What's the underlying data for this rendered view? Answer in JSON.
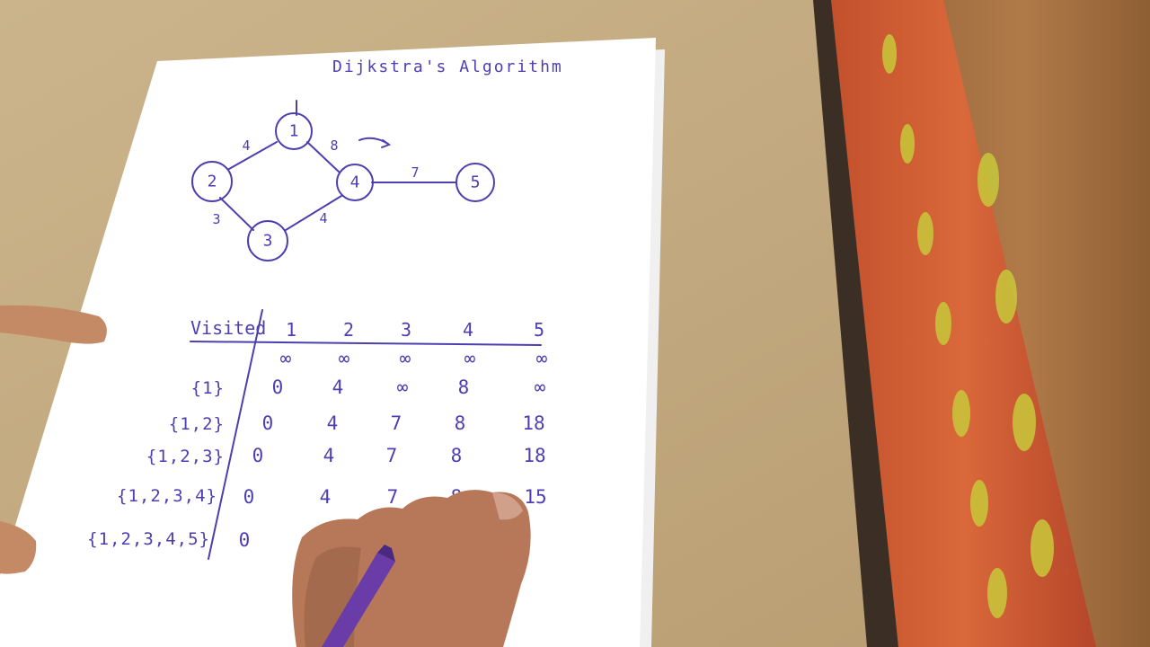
{
  "title": "Dijkstra's Algorithm",
  "graph": {
    "nodes": [
      {
        "id": "1",
        "label": "1"
      },
      {
        "id": "2",
        "label": "2"
      },
      {
        "id": "3",
        "label": "3"
      },
      {
        "id": "4",
        "label": "4"
      },
      {
        "id": "5",
        "label": "5"
      }
    ],
    "edges": [
      {
        "from": "1",
        "to": "2",
        "weight": "4"
      },
      {
        "from": "1",
        "to": "4",
        "weight": "8"
      },
      {
        "from": "2",
        "to": "3",
        "weight": "3"
      },
      {
        "from": "3",
        "to": "4",
        "weight": "4"
      },
      {
        "from": "4",
        "to": "5",
        "weight": "7"
      }
    ]
  },
  "table": {
    "visited_header": "Visited",
    "column_headers": [
      "1",
      "2",
      "3",
      "4",
      "5"
    ],
    "rows": [
      {
        "visited": "",
        "values": [
          "∞",
          "∞",
          "∞",
          "∞",
          "∞"
        ]
      },
      {
        "visited": "{1}",
        "values": [
          "0",
          "4",
          "∞",
          "8",
          "∞"
        ]
      },
      {
        "visited": "{1,2}",
        "values": [
          "0",
          "4",
          "7",
          "8",
          "18"
        ]
      },
      {
        "visited": "{1,2,3}",
        "values": [
          "0",
          "4",
          "7",
          "8",
          "18"
        ]
      },
      {
        "visited": "{1,2,3,4}",
        "values": [
          "0",
          "4",
          "7",
          "8",
          "15"
        ]
      },
      {
        "visited": "{1,2,3,4,5}",
        "values": [
          "0",
          "",
          "",
          "",
          ""
        ]
      }
    ]
  }
}
